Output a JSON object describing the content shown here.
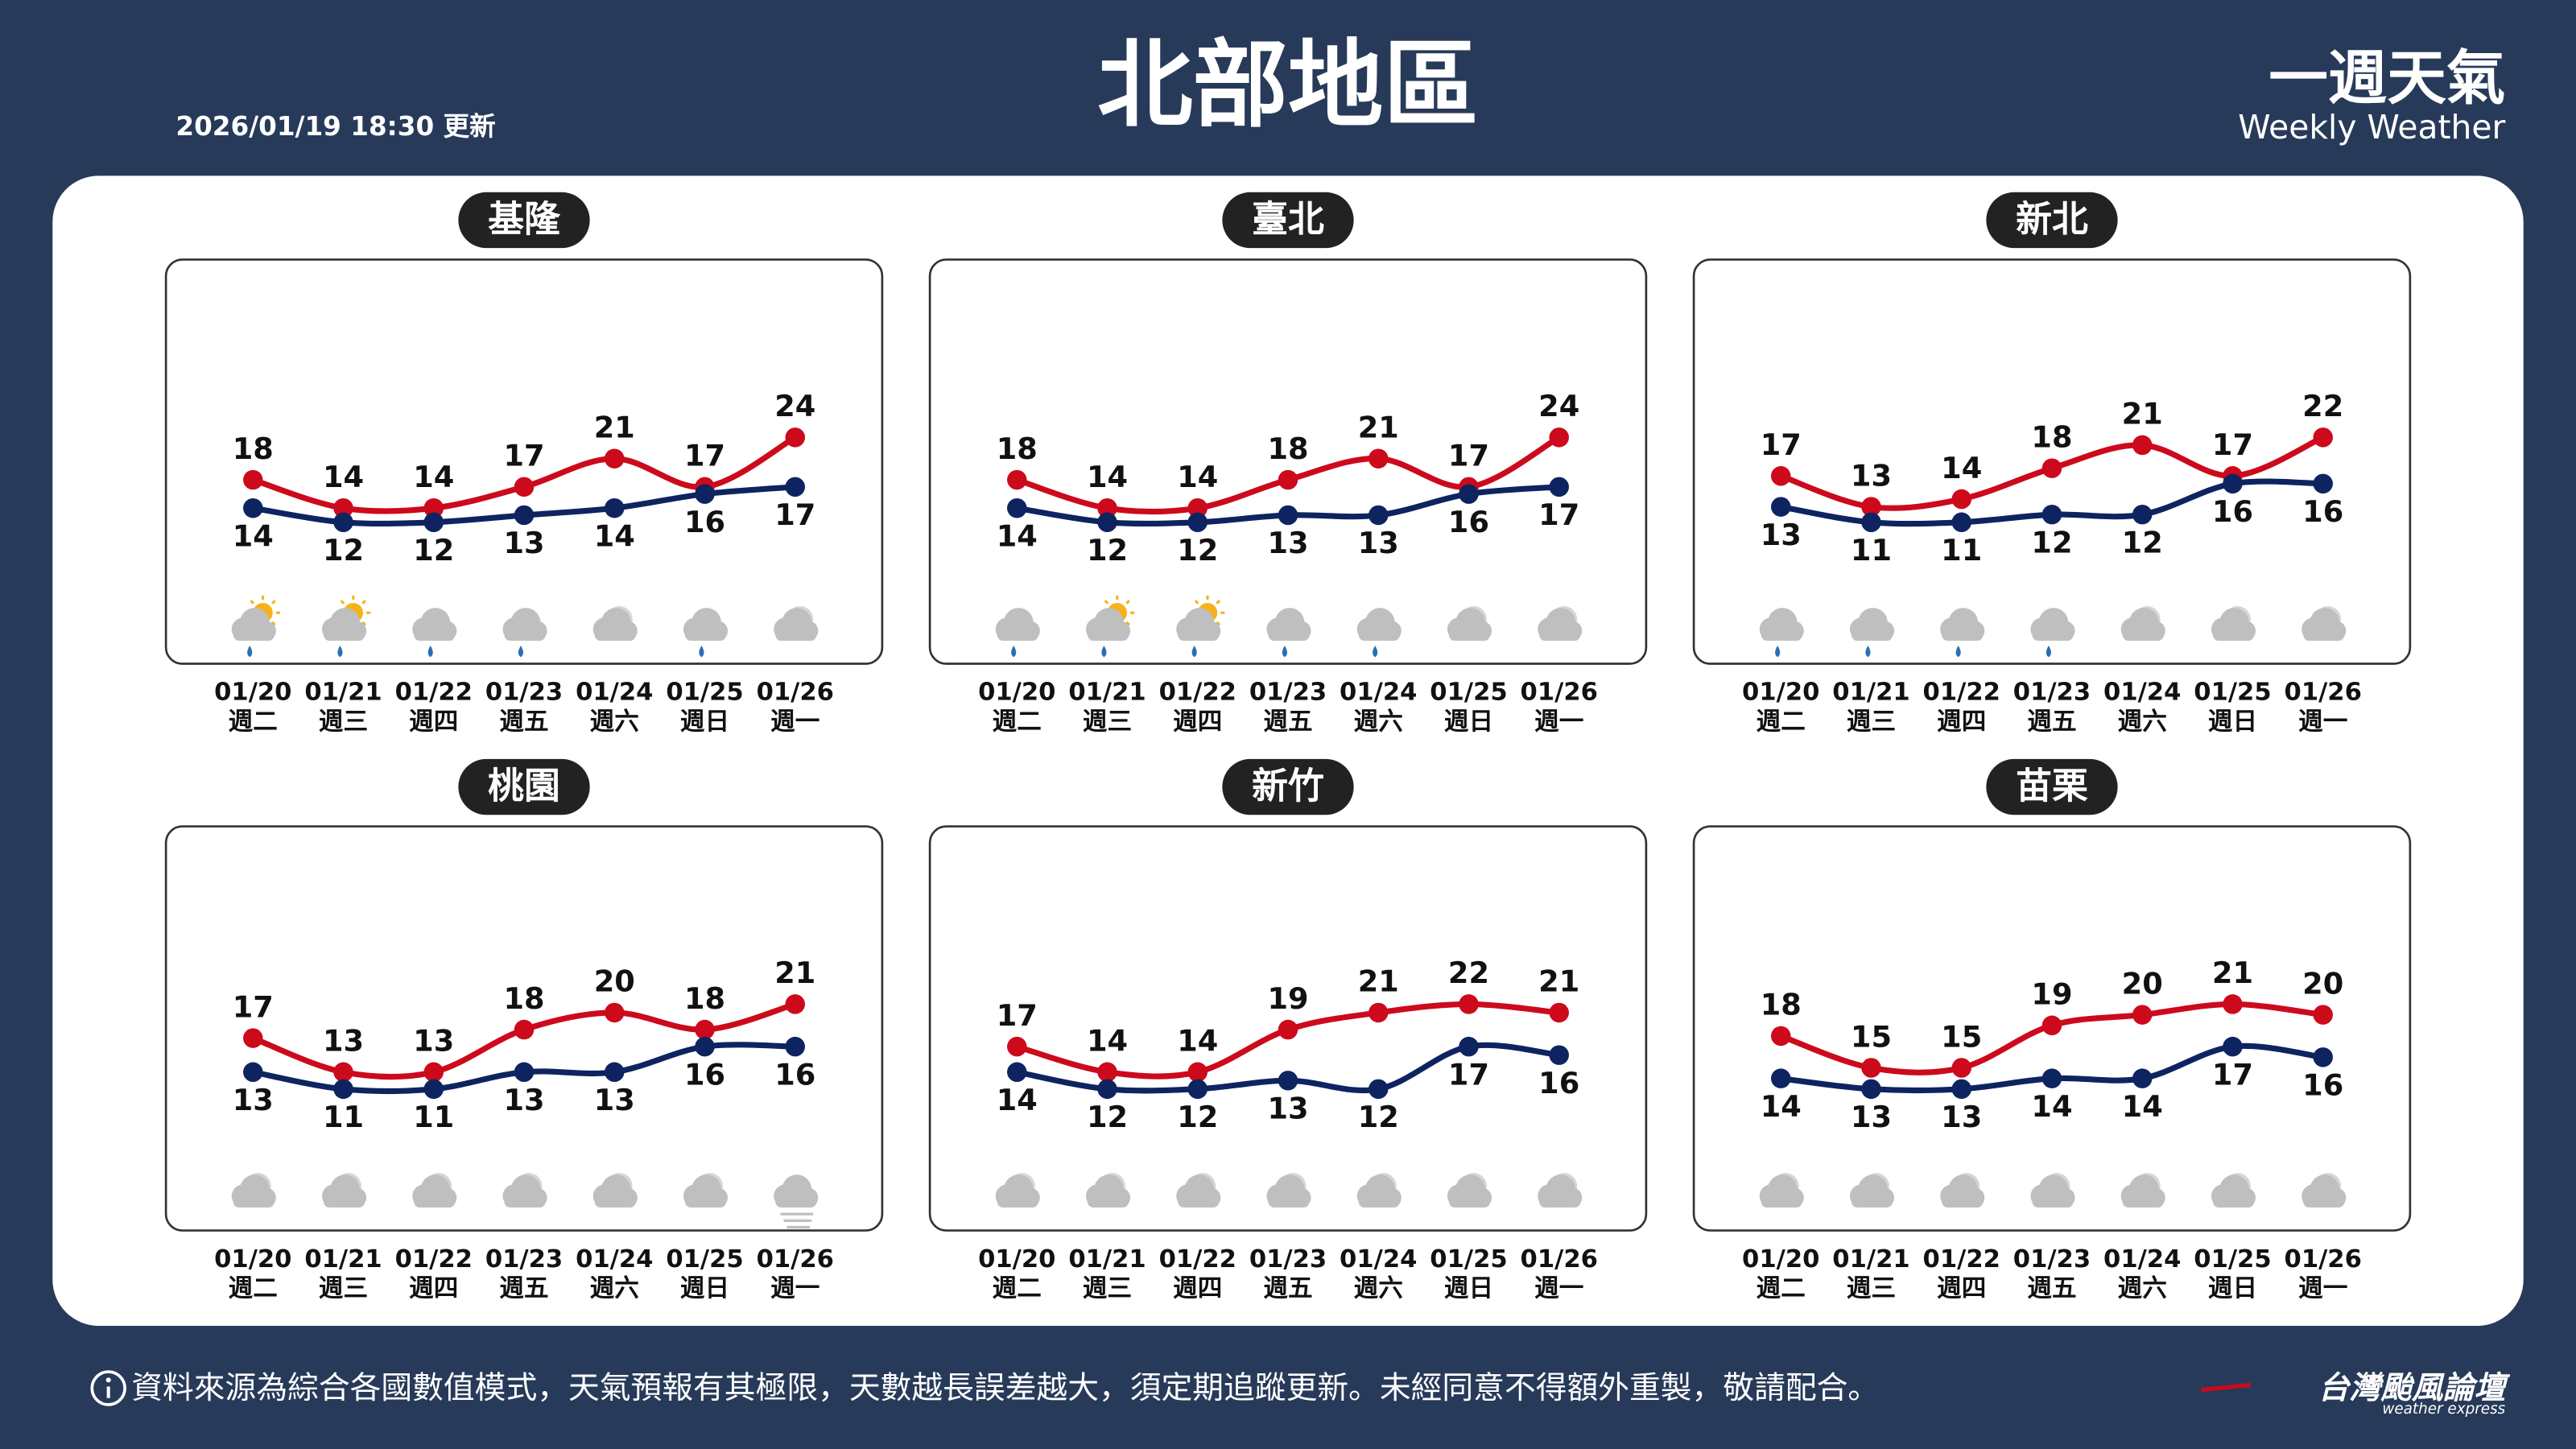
{
  "header": {
    "updated": "2026/01/19 18:30 更新",
    "title": "北部地區",
    "brand": "一週天氣",
    "brand_en": "Weekly Weather"
  },
  "chart_data": [
    {
      "type": "line",
      "title": "基隆",
      "categories": [
        "01/20",
        "01/21",
        "01/22",
        "01/23",
        "01/24",
        "01/25",
        "01/26"
      ],
      "weekdays": [
        "週二",
        "週三",
        "週四",
        "週五",
        "週六",
        "週日",
        "週一"
      ],
      "series": [
        {
          "color": "#cc0a1c",
          "values": [
            18,
            14,
            14,
            17,
            21,
            17,
            24
          ]
        },
        {
          "color": "#0e2461",
          "values": [
            14,
            12,
            12,
            13,
            14,
            16,
            17
          ]
        }
      ]
    },
    {
      "type": "line",
      "title": "臺北",
      "categories": [
        "01/20",
        "01/21",
        "01/22",
        "01/23",
        "01/24",
        "01/25",
        "01/26"
      ],
      "weekdays": [
        "週二",
        "週三",
        "週四",
        "週五",
        "週六",
        "週日",
        "週一"
      ],
      "series": [
        {
          "color": "#cc0a1c",
          "values": [
            18,
            14,
            14,
            18,
            21,
            17,
            24
          ]
        },
        {
          "color": "#0e2461",
          "values": [
            14,
            12,
            12,
            13,
            13,
            16,
            17
          ]
        }
      ]
    },
    {
      "type": "line",
      "title": "新北",
      "categories": [
        "01/20",
        "01/21",
        "01/22",
        "01/23",
        "01/24",
        "01/25",
        "01/26"
      ],
      "weekdays": [
        "週二",
        "週三",
        "週四",
        "週五",
        "週六",
        "週日",
        "週一"
      ],
      "series": [
        {
          "color": "#cc0a1c",
          "values": [
            17,
            13,
            14,
            18,
            21,
            17,
            22
          ]
        },
        {
          "color": "#0e2461",
          "values": [
            13,
            11,
            11,
            12,
            12,
            16,
            16
          ]
        }
      ]
    },
    {
      "type": "line",
      "title": "桃園",
      "categories": [
        "01/20",
        "01/21",
        "01/22",
        "01/23",
        "01/24",
        "01/25",
        "01/26"
      ],
      "weekdays": [
        "週二",
        "週三",
        "週四",
        "週五",
        "週六",
        "週日",
        "週一"
      ],
      "series": [
        {
          "color": "#cc0a1c",
          "values": [
            17,
            13,
            13,
            18,
            20,
            18,
            21
          ]
        },
        {
          "color": "#0e2461",
          "values": [
            13,
            11,
            11,
            13,
            13,
            16,
            16
          ]
        }
      ]
    },
    {
      "type": "line",
      "title": "新竹",
      "categories": [
        "01/20",
        "01/21",
        "01/22",
        "01/23",
        "01/24",
        "01/25",
        "01/26"
      ],
      "weekdays": [
        "週二",
        "週三",
        "週四",
        "週五",
        "週六",
        "週日",
        "週一"
      ],
      "series": [
        {
          "color": "#cc0a1c",
          "values": [
            17,
            14,
            14,
            19,
            21,
            22,
            21
          ]
        },
        {
          "color": "#0e2461",
          "values": [
            14,
            12,
            12,
            13,
            12,
            17,
            16
          ]
        }
      ]
    },
    {
      "type": "line",
      "title": "苗栗",
      "categories": [
        "01/20",
        "01/21",
        "01/22",
        "01/23",
        "01/24",
        "01/25",
        "01/26"
      ],
      "weekdays": [
        "週二",
        "週三",
        "週四",
        "週五",
        "週六",
        "週日",
        "週一"
      ],
      "series": [
        {
          "color": "#cc0a1c",
          "values": [
            18,
            15,
            15,
            19,
            20,
            21,
            20
          ]
        },
        {
          "color": "#0e2461",
          "values": [
            14,
            13,
            13,
            14,
            14,
            17,
            16
          ]
        }
      ]
    }
  ],
  "footer": {
    "note": "資料來源為綜合各國數值模式，天氣預報有其極限，天數越長誤差越大，須定期追蹤更新。未經同意不得額外重製，敬請配合。",
    "logo": "台灣颱風論壇",
    "logo_en": "weather express"
  }
}
